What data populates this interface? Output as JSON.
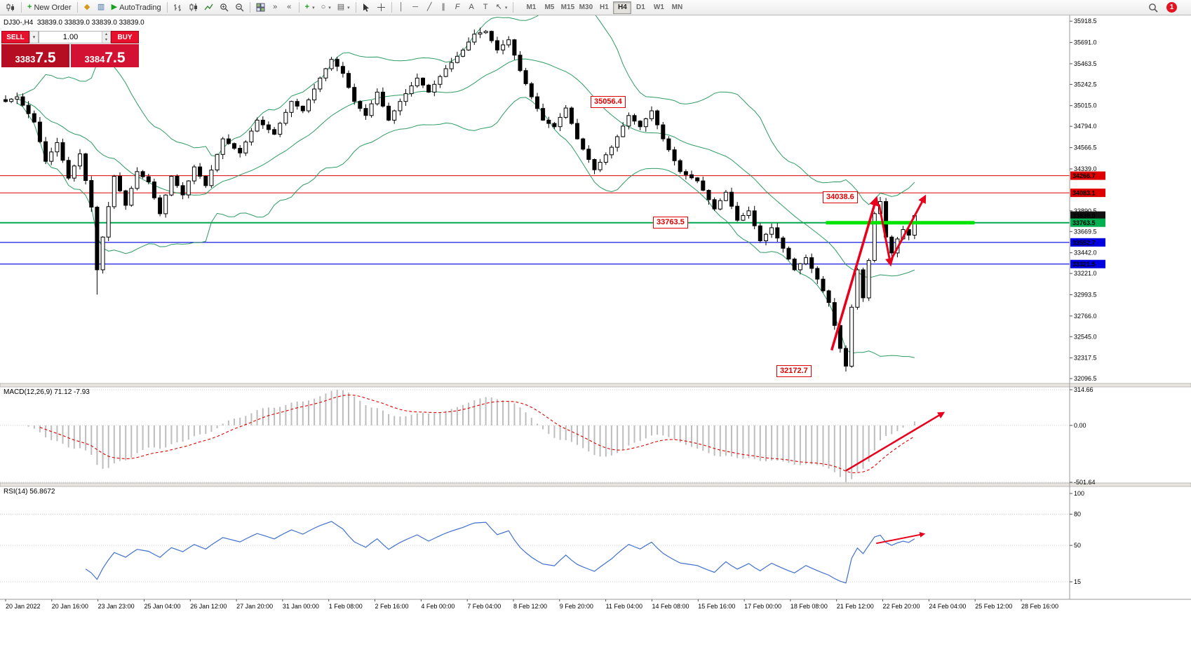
{
  "toolbar": {
    "new_order": "New Order",
    "autotrading": "AutoTrading",
    "timeframes": [
      "M1",
      "M5",
      "M15",
      "M30",
      "H1",
      "H4",
      "D1",
      "W1",
      "MN"
    ],
    "active_timeframe": "H4",
    "notification_badge": "1",
    "icons": [
      "charts-menu",
      "new-order-plus",
      "expert-advisors",
      "data-window",
      "autotrading-play",
      "bar-chart",
      "candlestick-chart",
      "line-chart",
      "zoom-in",
      "zoom-out",
      "tile-windows",
      "auto-scroll",
      "chart-shift",
      "add-indicator",
      "periods",
      "templates",
      "cursor",
      "crosshair",
      "vertical-line",
      "horizontal-line",
      "trendline",
      "equidistant-channel",
      "fibonacci",
      "text-label",
      "label-tool",
      "arrows-tool",
      "search",
      "notifications"
    ]
  },
  "trade_panel": {
    "sell_label": "SELL",
    "buy_label": "BUY",
    "volume": "1.00",
    "sell_price": "33837.5",
    "buy_price": "33847.5"
  },
  "chart_header": {
    "symbol_period": "DJ30-,H4",
    "ohlc": "33839.0 33839.0 33839.0 33839.0"
  },
  "indicators": {
    "macd_label": "MACD(12,26,9) 71.12 -7.93",
    "rsi_label": "RSI(14) 56.8672"
  },
  "price_axis": {
    "ticks": [
      "35918.5",
      "35691.0",
      "35463.5",
      "35242.5",
      "35015.0",
      "34794.0",
      "34566.5",
      "34339.0",
      "33890.5",
      "33669.5",
      "33442.0",
      "33221.0",
      "32993.5",
      "32766.0",
      "32545.0",
      "32317.5",
      "32096.5"
    ],
    "badges": [
      {
        "label": "34266.7",
        "color": "#dd0000"
      },
      {
        "label": "34083.1",
        "color": "#dd0000"
      },
      {
        "label": "33839.0",
        "color": "#111111"
      },
      {
        "label": "33763.5",
        "color": "#00b050"
      },
      {
        "label": "33552.7",
        "color": "#0000e0"
      },
      {
        "label": "33321.5",
        "color": "#0000e0"
      }
    ]
  },
  "macd_axis": [
    {
      "label": "314.66",
      "value": 314.66
    },
    {
      "label": "0.00",
      "value": 0
    },
    {
      "label": "-501.64",
      "value": -501.64
    }
  ],
  "rsi_axis": [
    {
      "label": "100",
      "value": 100
    },
    {
      "label": "80",
      "value": 80
    },
    {
      "label": "50",
      "value": 50
    },
    {
      "label": "15",
      "value": 15
    }
  ],
  "time_axis": {
    "labels": [
      "20 Jan 2022",
      "20 Jan 16:00",
      "23 Jan 23:00",
      "25 Jan 04:00",
      "26 Jan 12:00",
      "27 Jan 20:00",
      "31 Jan 00:00",
      "1 Feb 08:00",
      "2 Feb 16:00",
      "4 Feb 00:00",
      "7 Feb 04:00",
      "8 Feb 12:00",
      "9 Feb 20:00",
      "11 Feb 04:00",
      "14 Feb 08:00",
      "15 Feb 16:00",
      "17 Feb 00:00",
      "18 Feb 08:00",
      "21 Feb 12:00",
      "22 Feb 20:00",
      "24 Feb 04:00",
      "25 Feb 12:00",
      "28 Feb 16:00"
    ]
  },
  "chart_data": {
    "type": "candlestick",
    "symbol": "DJ30-",
    "timeframe": "H4",
    "price_range": {
      "max": 35935,
      "min": 32060
    },
    "candles": {
      "count": 160,
      "close_anchors": [
        [
          0,
          35060
        ],
        [
          2,
          35110
        ],
        [
          5,
          34840
        ],
        [
          7,
          34420
        ],
        [
          9,
          34620
        ],
        [
          11,
          34240
        ],
        [
          13,
          34500
        ],
        [
          15,
          33930
        ],
        [
          16,
          33260
        ],
        [
          17,
          33610
        ],
        [
          19,
          34260
        ],
        [
          21,
          33950
        ],
        [
          23,
          34310
        ],
        [
          25,
          34200
        ],
        [
          27,
          33860
        ],
        [
          29,
          34260
        ],
        [
          31,
          34060
        ],
        [
          33,
          34360
        ],
        [
          35,
          34160
        ],
        [
          38,
          34660
        ],
        [
          41,
          34510
        ],
        [
          44,
          34860
        ],
        [
          47,
          34710
        ],
        [
          50,
          35060
        ],
        [
          52,
          34960
        ],
        [
          55,
          35310
        ],
        [
          57,
          35510
        ],
        [
          59,
          35360
        ],
        [
          61,
          35060
        ],
        [
          63,
          34910
        ],
        [
          65,
          35160
        ],
        [
          67,
          34860
        ],
        [
          69,
          35060
        ],
        [
          72,
          35310
        ],
        [
          74,
          35160
        ],
        [
          77,
          35410
        ],
        [
          80,
          35610
        ],
        [
          82,
          35780
        ],
        [
          84,
          35810
        ],
        [
          86,
          35610
        ],
        [
          88,
          35720
        ],
        [
          90,
          35390
        ],
        [
          92,
          35110
        ],
        [
          94,
          34860
        ],
        [
          96,
          34790
        ],
        [
          98,
          34990
        ],
        [
          100,
          34660
        ],
        [
          103,
          34330
        ],
        [
          106,
          34570
        ],
        [
          109,
          34910
        ],
        [
          111,
          34790
        ],
        [
          113,
          34960
        ],
        [
          115,
          34660
        ],
        [
          118,
          34310
        ],
        [
          121,
          34210
        ],
        [
          124,
          33910
        ],
        [
          126,
          34090
        ],
        [
          128,
          33790
        ],
        [
          130,
          33890
        ],
        [
          132,
          33570
        ],
        [
          134,
          33710
        ],
        [
          136,
          33490
        ],
        [
          138,
          33260
        ],
        [
          140,
          33390
        ],
        [
          142,
          33160
        ],
        [
          144,
          32910
        ],
        [
          146,
          32420
        ],
        [
          147,
          32230
        ],
        [
          148,
          32860
        ],
        [
          149,
          33260
        ],
        [
          150,
          32960
        ],
        [
          151,
          33360
        ],
        [
          152,
          33860
        ],
        [
          153,
          33990
        ],
        [
          154,
          33610
        ],
        [
          155,
          33440
        ],
        [
          156,
          33590
        ],
        [
          157,
          33690
        ],
        [
          158,
          33630
        ],
        [
          159,
          33839
        ]
      ],
      "forced_extremes": {
        "16": {
          "low": 32995
        },
        "84": {
          "high": 35824
        },
        "147": {
          "low": 32172.7
        },
        "153": {
          "high": 34038.6
        }
      }
    },
    "overlays": {
      "bollinger": {
        "period": 20,
        "deviation": 2,
        "color": "#2e9b63"
      }
    },
    "levels": [
      {
        "price": 34266.7,
        "color": "#dd0000",
        "width": 1
      },
      {
        "price": 34083.1,
        "color": "#dd0000",
        "width": 1
      },
      {
        "price": 33763.5,
        "color": "#00a651",
        "width": 2
      },
      {
        "price": 33552.7,
        "color": "#0000e0",
        "width": 1.2
      },
      {
        "price": 33321.5,
        "color": "#0000e0",
        "width": 1.2
      }
    ],
    "highlight_segment": {
      "from_i": 143.5,
      "to_i": 169.5,
      "price": 33763.5,
      "color": "#00e400",
      "width": 5
    },
    "callouts": [
      {
        "text": "35056.4",
        "i": 102.3,
        "price": 35056.4
      },
      {
        "text": "34038.6",
        "i": 143.0,
        "price": 34038.6
      },
      {
        "text": "33763.5",
        "i": 113.3,
        "price": 33763.5
      },
      {
        "text": "32172.7",
        "i": 134.8,
        "price": 32172.7
      }
    ],
    "arrows": [
      {
        "panel": "main",
        "from": [
          144.5,
          32400
        ],
        "to": [
          152.3,
          34020
        ],
        "width": 3.5
      },
      {
        "panel": "main",
        "from": [
          152.8,
          33960
        ],
        "to": [
          154.8,
          33320
        ],
        "width": 3
      },
      {
        "panel": "main",
        "from": [
          155.0,
          33380
        ],
        "to": [
          160.8,
          34040
        ],
        "width": 3
      },
      {
        "panel": "macd",
        "from": [
          147,
          -400
        ],
        "to": [
          164,
          110
        ],
        "width": 2.5
      },
      {
        "panel": "rsi",
        "from": [
          152.3,
          52
        ],
        "to": [
          160.6,
          61
        ],
        "width": 2
      }
    ],
    "macd": {
      "fast": 12,
      "slow": 26,
      "signal": 9,
      "scale_max": 314.66,
      "scale_min": -501.64,
      "hist_color": "#bdbdbd",
      "signal_color": "#e00000"
    },
    "rsi": {
      "period": 14,
      "color": "#4070d0",
      "dotted_levels": [
        80,
        50,
        15
      ]
    },
    "colors": {
      "bull": "#ffffff",
      "bear": "#000000",
      "wick": "#000000",
      "arrow": "#e8001c"
    }
  }
}
